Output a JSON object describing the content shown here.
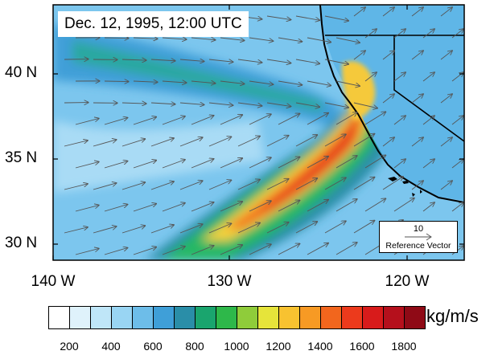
{
  "title": "Dec. 12, 1995, 12:00 UTC",
  "lat_labels": [
    "40 N",
    "35 N",
    "30 N"
  ],
  "lon_labels": [
    "140 W",
    "130 W",
    "120 W"
  ],
  "reference_vector": {
    "value": "10",
    "label": "Reference Vector"
  },
  "colorbar": {
    "unit": "kg/m/s",
    "ticks": [
      "200",
      "400",
      "600",
      "800",
      "1000",
      "1200",
      "1400",
      "1600",
      "1800"
    ],
    "colors": [
      "#ffffff",
      "#dff2fb",
      "#bfe6f8",
      "#99d5f3",
      "#6dbde9",
      "#3f9fd8",
      "#2a8ea8",
      "#1aa56e",
      "#2eb84a",
      "#8fcc3a",
      "#e6e43a",
      "#f8c230",
      "#f79a24",
      "#f2661d",
      "#ec3a1c",
      "#d81b1b",
      "#b5101c",
      "#8f0a16"
    ]
  },
  "ocean_colors": {
    "background": "#7cc6ee",
    "light": "#b7e0f7",
    "mid": "#4aa6e0",
    "dark": "#2d8fd5"
  },
  "river_colors": [
    "#2aa8a0",
    "#27b765",
    "#8dcc3d",
    "#f5d23a",
    "#f7a12a",
    "#f26a1e",
    "#e53a1c",
    "#cc1a1a"
  ]
}
